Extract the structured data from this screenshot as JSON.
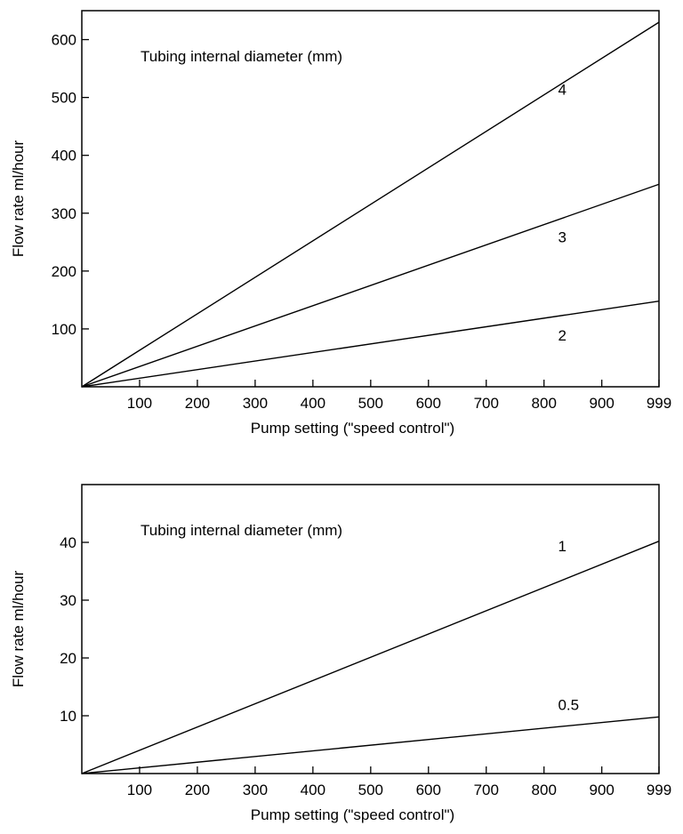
{
  "chart_data": [
    {
      "type": "line",
      "annotation": "Tubing internal diameter (mm)",
      "xlabel": "Pump setting (\"speed control\")",
      "ylabel": "Flow rate ml/hour",
      "xlim": [
        0,
        999
      ],
      "ylim": [
        0,
        650
      ],
      "x_ticks": [
        100,
        200,
        300,
        400,
        500,
        600,
        700,
        800,
        900,
        999
      ],
      "x_tick_labels": [
        "100",
        "200",
        "300",
        "400",
        "500",
        "600",
        "700",
        "800",
        "900",
        "999"
      ],
      "y_ticks": [
        100,
        200,
        300,
        400,
        500,
        600
      ],
      "y_tick_labels": [
        "100",
        "200",
        "300",
        "400",
        "500",
        "600"
      ],
      "grid": false,
      "legend": "none",
      "series": [
        {
          "name": "4",
          "x": [
            0,
            999
          ],
          "y": [
            0,
            630
          ],
          "label_x": 815,
          "label_y": 505
        },
        {
          "name": "3",
          "x": [
            0,
            999
          ],
          "y": [
            0,
            350
          ],
          "label_x": 815,
          "label_y": 250
        },
        {
          "name": "2",
          "x": [
            0,
            999
          ],
          "y": [
            0,
            148
          ],
          "label_x": 815,
          "label_y": 80
        }
      ]
    },
    {
      "type": "line",
      "annotation": "Tubing internal diameter (mm)",
      "xlabel": "Pump setting (\"speed control\")",
      "ylabel": "Flow rate ml/hour",
      "xlim": [
        0,
        999
      ],
      "ylim": [
        0,
        50
      ],
      "x_ticks": [
        100,
        200,
        300,
        400,
        500,
        600,
        700,
        800,
        900,
        999
      ],
      "x_tick_labels": [
        "100",
        "200",
        "300",
        "400",
        "500",
        "600",
        "700",
        "800",
        "900",
        "999"
      ],
      "y_ticks": [
        10,
        20,
        30,
        40
      ],
      "y_tick_labels": [
        "10",
        "20",
        "30",
        "40"
      ],
      "grid": false,
      "legend": "none",
      "series": [
        {
          "name": "1",
          "x": [
            0,
            999
          ],
          "y": [
            0,
            40.2
          ],
          "label_x": 815,
          "label_y": 38.5
        },
        {
          "name": "0.5",
          "x": [
            0,
            999
          ],
          "y": [
            0,
            9.8
          ],
          "label_x": 815,
          "label_y": 11
        }
      ]
    }
  ]
}
